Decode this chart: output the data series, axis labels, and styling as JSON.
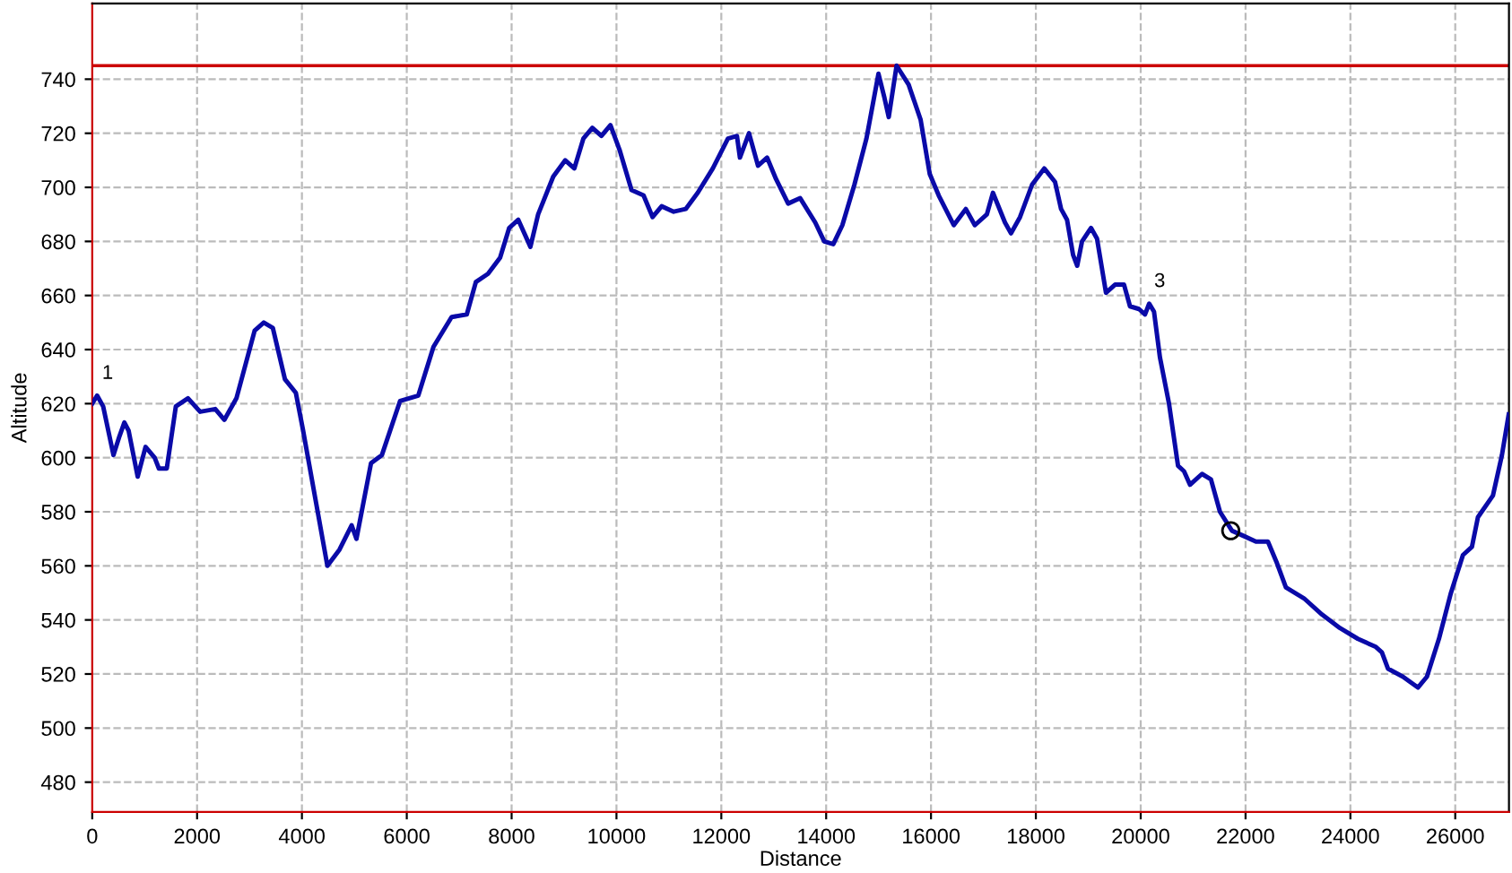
{
  "chart_data": {
    "type": "line",
    "xlabel": "Distance",
    "ylabel": "Altitude",
    "xlim": [
      0,
      27025
    ],
    "ylim": [
      469,
      768
    ],
    "xticks": [
      0,
      2000,
      4000,
      6000,
      8000,
      10000,
      12000,
      14000,
      16000,
      18000,
      20000,
      22000,
      24000,
      26000
    ],
    "yticks": [
      480,
      500,
      520,
      540,
      560,
      580,
      600,
      620,
      640,
      660,
      680,
      700,
      720,
      740
    ],
    "grid": true,
    "line_style": "solid",
    "ref_lines": [
      {
        "axis": "y",
        "value": 745,
        "color": "#cc0000"
      }
    ],
    "annotations": [
      {
        "text": "1",
        "x": 93,
        "y": 623
      },
      {
        "text": "3",
        "x": 20162,
        "y": 657
      }
    ],
    "series": [
      {
        "color": "#0a0aa8",
        "x": [
          0,
          93,
          208,
          405,
          520,
          613,
          694,
          867,
          1017,
          1191,
          1272,
          1422,
          1595,
          1827,
          2058,
          2347,
          2520,
          2751,
          3098,
          3272,
          3445,
          3676,
          3884,
          4023,
          4486,
          4717,
          4948,
          5040,
          5318,
          5526,
          5873,
          6220,
          6509,
          6855,
          7145,
          7318,
          7549,
          7780,
          7954,
          8127,
          8358,
          8506,
          8794,
          9023,
          9196,
          9368,
          9540,
          9713,
          9885,
          10057,
          10287,
          10517,
          10689,
          10862,
          11092,
          11321,
          11551,
          11838,
          12126,
          12298,
          12355,
          12528,
          12700,
          12873,
          13045,
          13275,
          13504,
          13792,
          13964,
          14136,
          14309,
          14539,
          14768,
          14998,
          15113,
          15194,
          15343,
          15573,
          15802,
          15975,
          16147,
          16434,
          16664,
          16836,
          17066,
          17181,
          17411,
          17526,
          17698,
          17928,
          18160,
          18366,
          18481,
          18595,
          18710,
          18789,
          18881,
          19052,
          19167,
          19338,
          19510,
          19682,
          19796,
          19967,
          20082,
          20162,
          20254,
          20368,
          20540,
          20712,
          20826,
          20940,
          21169,
          21340,
          21512,
          21741,
          21970,
          22198,
          22427,
          22599,
          22770,
          23114,
          23457,
          23800,
          24143,
          24487,
          24601,
          24716,
          25002,
          25288,
          25460,
          25689,
          25918,
          26147,
          26318,
          26433,
          26719,
          26891,
          27020
        ],
        "values": [
          620,
          623,
          619,
          601,
          608,
          613,
          610,
          593,
          604,
          600,
          596,
          596,
          619,
          622,
          617,
          618,
          614,
          622,
          647,
          650,
          648,
          629,
          624,
          610,
          560,
          566,
          575,
          570,
          598,
          601,
          621,
          623,
          641,
          652,
          653,
          665,
          668,
          674,
          685,
          688,
          678,
          690,
          704,
          710,
          707,
          718,
          722,
          719,
          723,
          714,
          699,
          697,
          689,
          693,
          691,
          692,
          698,
          707,
          718,
          719,
          711,
          720,
          708,
          711,
          703,
          694,
          696,
          687,
          680,
          679,
          686,
          701,
          718,
          742,
          733,
          726,
          745,
          738,
          725,
          705,
          697,
          686,
          692,
          686,
          690,
          698,
          687,
          683,
          689,
          701,
          707,
          702,
          692,
          688,
          675,
          671,
          680,
          685,
          681,
          661,
          664,
          664,
          656,
          655,
          653,
          657,
          654,
          637,
          620,
          597,
          595,
          590,
          594,
          592,
          580,
          573,
          571,
          569,
          569,
          561,
          552,
          548,
          542,
          537,
          533,
          530,
          528,
          522,
          519,
          515,
          519,
          533,
          550,
          564,
          567,
          578,
          586,
          601,
          616
        ]
      },
      {
        "type": "scatter",
        "color": "#000000",
        "marker": "circle",
        "x": [
          21718
        ],
        "values": [
          573
        ]
      }
    ]
  }
}
